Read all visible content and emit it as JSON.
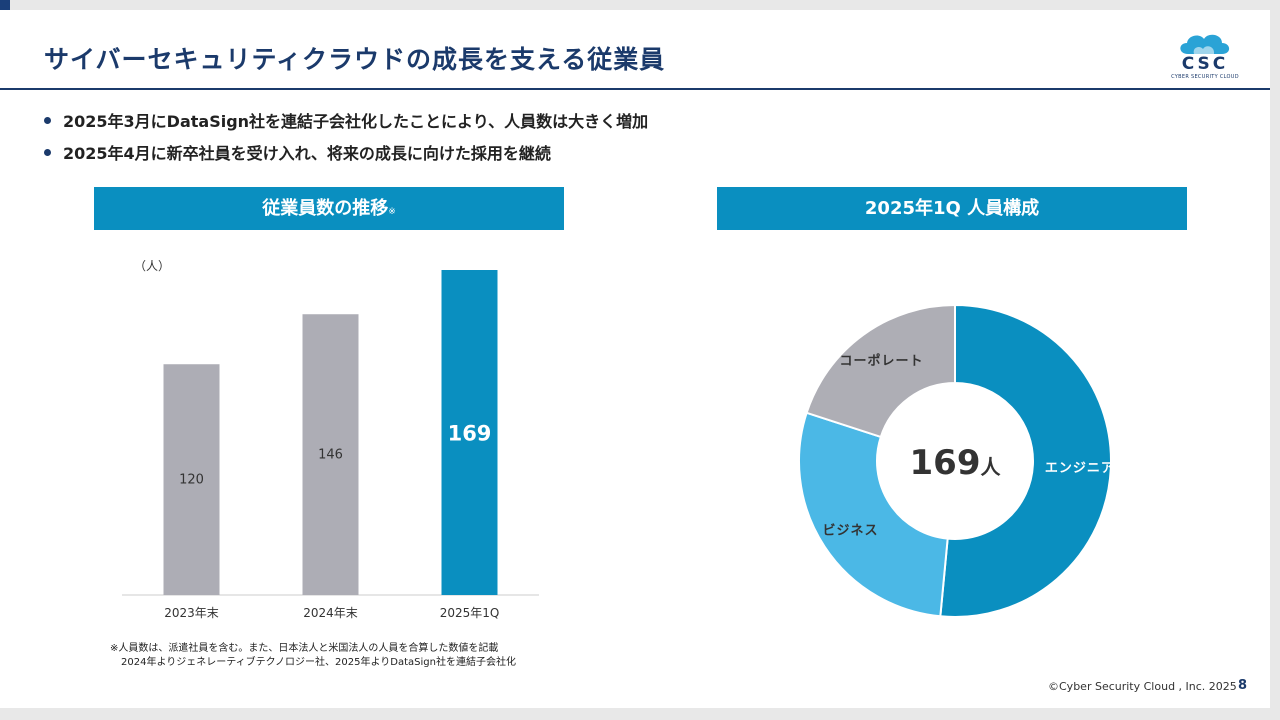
{
  "slide": {
    "title": "サイバーセキュリティクラウドの成長を支える従業員",
    "logo": {
      "text": "CSC",
      "subtext": "CYBER SECURITY CLOUD"
    },
    "bullets": [
      "2025年3月にDataSign社を連結子会社化したことにより、人員数は大きく増加",
      "2025年4月に新卒社員を受け入れ、将来の成長に向けた採用を継続"
    ],
    "footnote": {
      "line1": "※人員数は、派遣社員を含む。また、日本法人と米国法人の人員を合算した数値を記載",
      "line2": "2024年よりジェネレーティブテクノロジー社、2025年よりDataSign社を連結子会社化"
    },
    "copyright": "©Cyber Security Cloud , Inc. 2025",
    "page_number": "8"
  },
  "colors": {
    "navy": "#1b3a6b",
    "accent": "#0a8fc0",
    "gray_bar": "#adadb5",
    "light_blue": "#4bb8e6",
    "donut_gray": "#aeaeb5"
  },
  "chart_data": [
    {
      "type": "bar",
      "title": "従業員数の推移",
      "title_mark": "※",
      "ylabel": "（人）",
      "categories": [
        "2023年末",
        "2024年末",
        "2025年1Q"
      ],
      "values": [
        120,
        146,
        169
      ],
      "highlight_index": 2,
      "ylim": [
        0,
        169
      ],
      "grid": false
    },
    {
      "type": "pie",
      "title": "2025年1Q 人員構成",
      "center_value": "169",
      "center_unit": "人",
      "slices": [
        {
          "label": "エンジニア",
          "value": 0.515
        },
        {
          "label": "ビジネス",
          "value": 0.285
        },
        {
          "label": "コーポレート",
          "value": 0.2
        }
      ]
    }
  ]
}
